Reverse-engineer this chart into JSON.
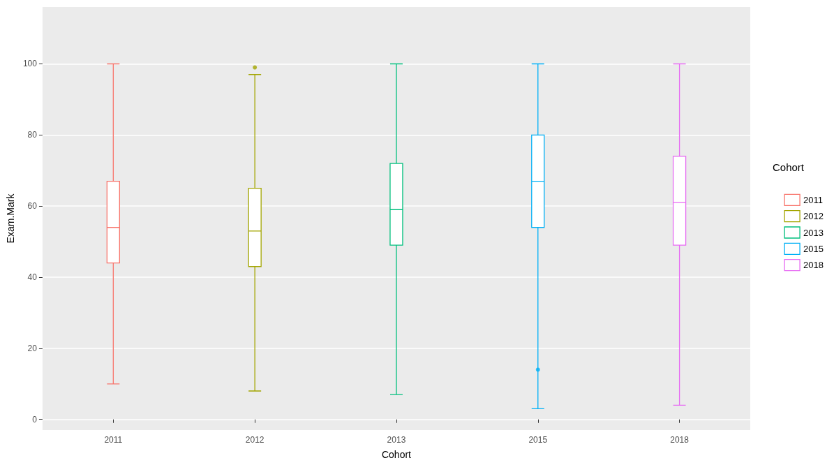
{
  "chart_data": {
    "type": "box",
    "xlabel": "Cohort",
    "ylabel": "Exam.Mark",
    "legend_title": "Cohort",
    "legend": "right",
    "grid": "y",
    "categories": [
      "2011",
      "2012",
      "2013",
      "2015",
      "2018"
    ],
    "ylim": [
      -3,
      116
    ],
    "yticks": [
      0,
      20,
      40,
      60,
      80,
      100
    ],
    "series": [
      {
        "name": "2011",
        "color": "#f8766d",
        "boxes": [
          {
            "low": 10,
            "q1": 44,
            "median": 54,
            "q3": 67,
            "high": 100
          },
          null,
          null,
          null,
          null
        ]
      },
      {
        "name": "2012",
        "color": "#a3a500",
        "boxes": [
          null,
          {
            "low": 8,
            "q1": 43,
            "median": 53,
            "q3": 65,
            "high": 97,
            "outliers": [
              99
            ]
          },
          null,
          null,
          null
        ]
      },
      {
        "name": "2013",
        "color": "#00bf7d",
        "boxes": [
          null,
          null,
          {
            "low": 7,
            "q1": 49,
            "median": 59,
            "q3": 72,
            "high": 100
          },
          null,
          null
        ]
      },
      {
        "name": "2015",
        "color": "#00b0f6",
        "boxes": [
          null,
          null,
          null,
          {
            "low": 3,
            "q1": 54,
            "median": 67,
            "q3": 80,
            "high": 100,
            "outliers": [
              14
            ]
          },
          null
        ]
      },
      {
        "name": "2018",
        "color": "#e76bf3",
        "boxes": [
          null,
          null,
          null,
          null,
          {
            "low": 4,
            "q1": 49,
            "median": 61,
            "q3": 74,
            "high": 100
          }
        ]
      }
    ]
  }
}
